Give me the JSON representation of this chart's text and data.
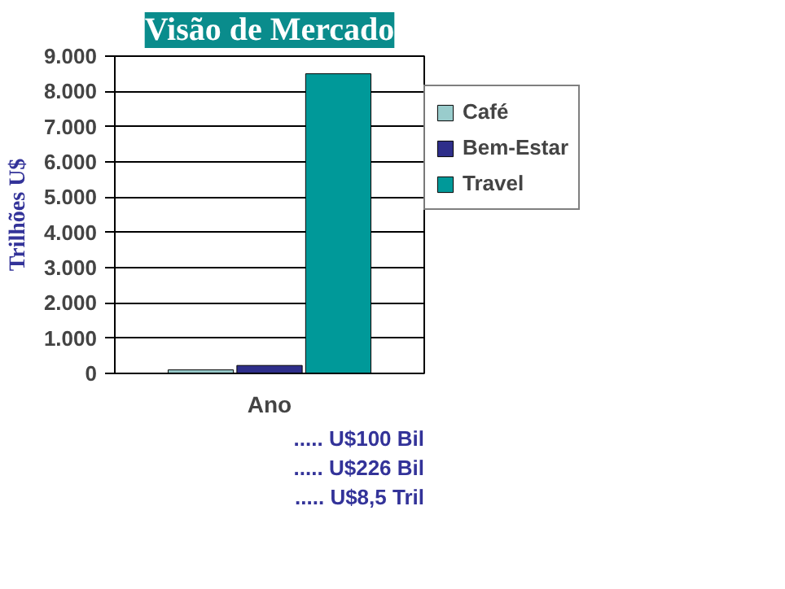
{
  "chart_data": {
    "type": "bar",
    "title": "Visão de Mercado",
    "ylabel": "Trilhões U$",
    "categories": [
      "Ano"
    ],
    "series": [
      {
        "name": "Café",
        "color": "#99cccc",
        "values": [
          100
        ]
      },
      {
        "name": "Bem-Estar",
        "color": "#2e2e8a",
        "values": [
          226
        ]
      },
      {
        "name": "Travel",
        "color": "#009999",
        "values": [
          8500
        ]
      }
    ],
    "ylim": [
      0,
      9000
    ],
    "yticks": [
      0,
      {
        "value": 1000,
        "label": "1.000"
      },
      {
        "value": 2000,
        "label": "2.000"
      },
      {
        "value": 3000,
        "label": "3.000"
      },
      {
        "value": 4000,
        "label": "4.000"
      },
      {
        "value": 5000,
        "label": "5.000"
      },
      {
        "value": 6000,
        "label": "6.000"
      },
      {
        "value": 7000,
        "label": "7.000"
      },
      {
        "value": 8000,
        "label": "8.000"
      },
      {
        "value": 9000,
        "label": "9.000"
      }
    ],
    "grid": "y",
    "legend": "right",
    "annotations": [
      "..... U$100 Bil",
      "..... U$226 Bil",
      "..... U$8,5 Tril"
    ]
  }
}
